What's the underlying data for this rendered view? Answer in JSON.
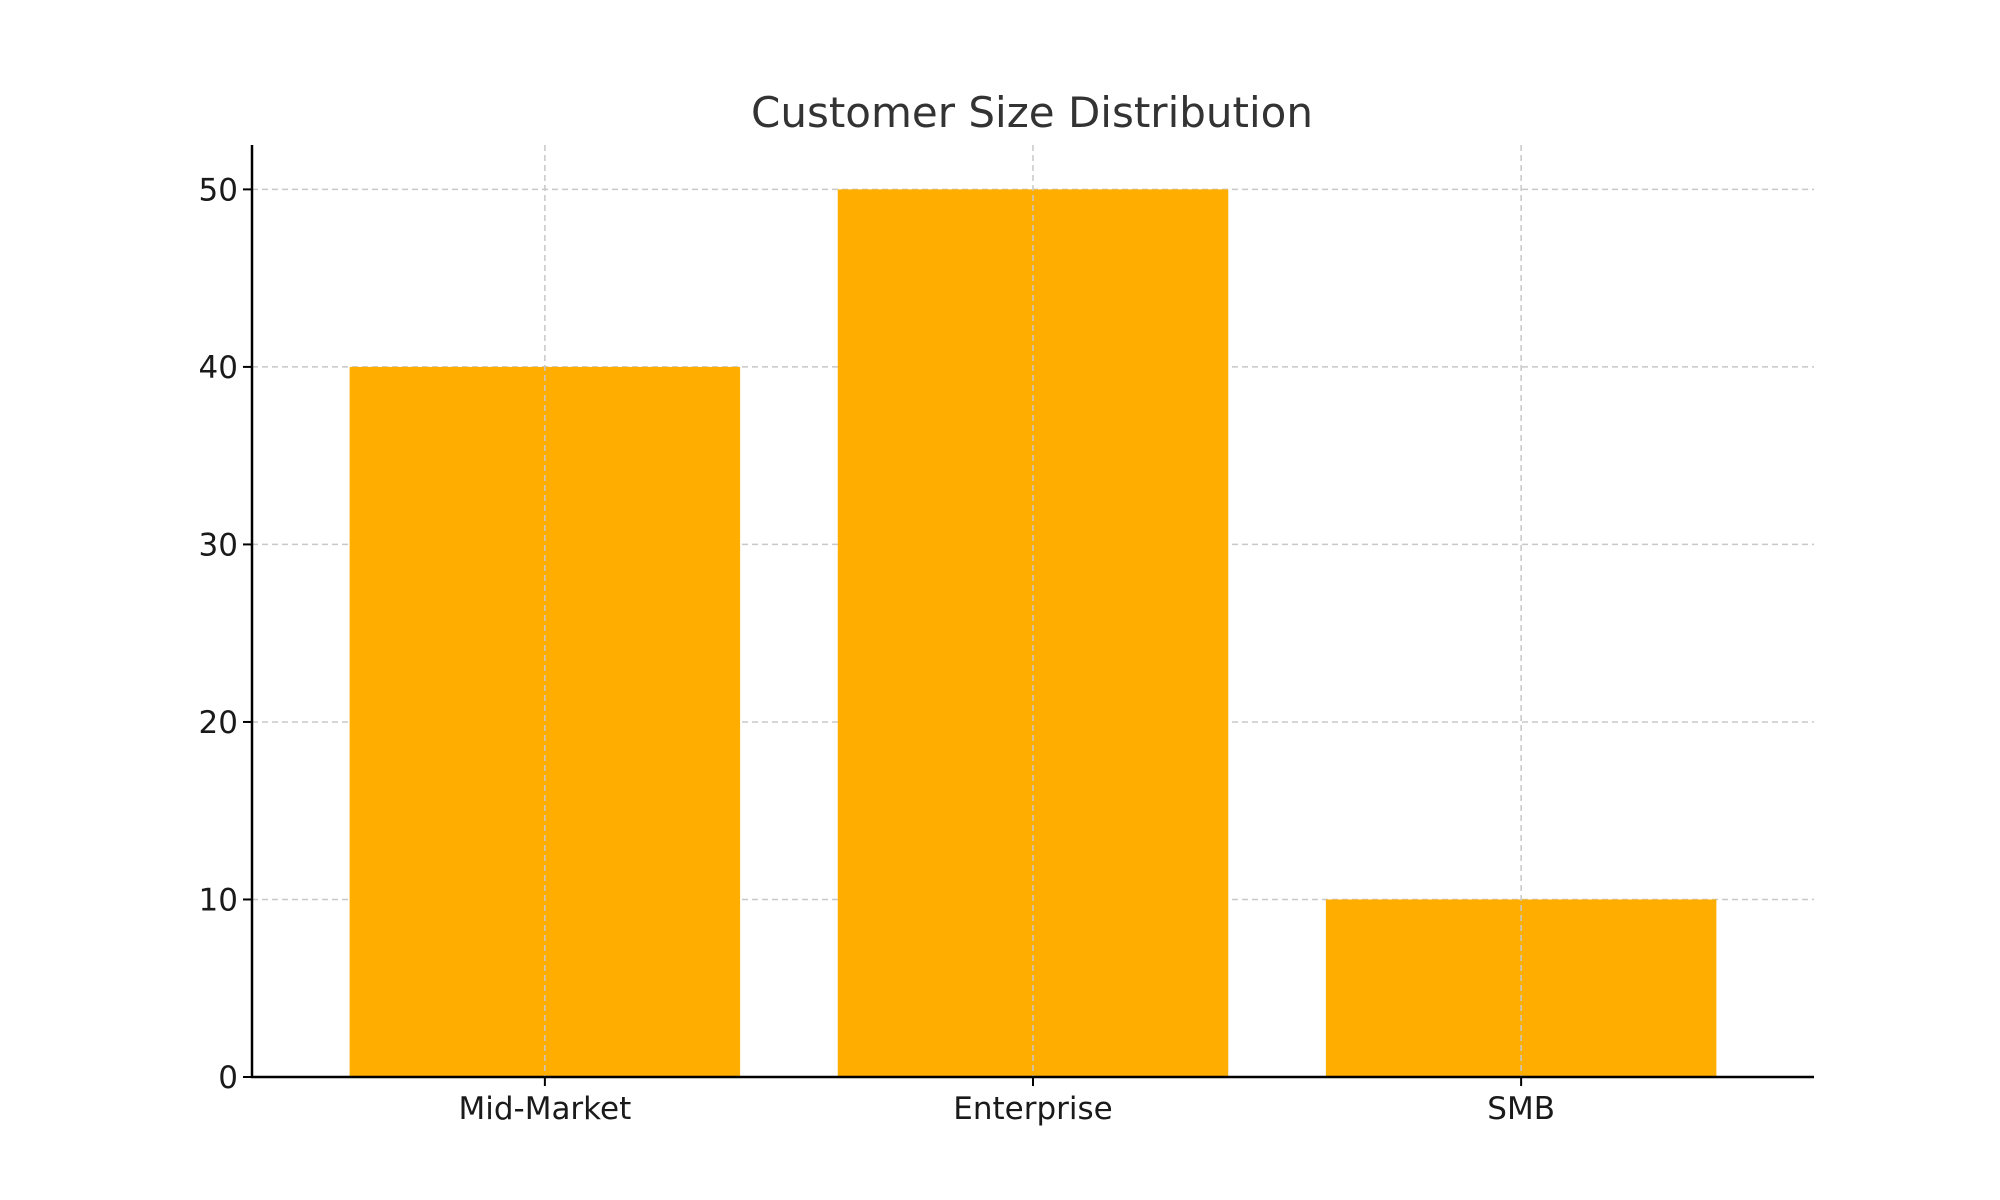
{
  "chart_data": {
    "type": "bar",
    "title": "Customer Size Distribution",
    "xlabel": "",
    "ylabel": "",
    "categories": [
      "Mid-Market",
      "Enterprise",
      "SMB"
    ],
    "values": [
      40,
      50,
      10
    ],
    "ylim": [
      0,
      52.5
    ],
    "yticks": [
      0,
      10,
      20,
      30,
      40,
      50
    ],
    "grid": true,
    "bar_color": "#FFAE00",
    "legend": "none"
  }
}
